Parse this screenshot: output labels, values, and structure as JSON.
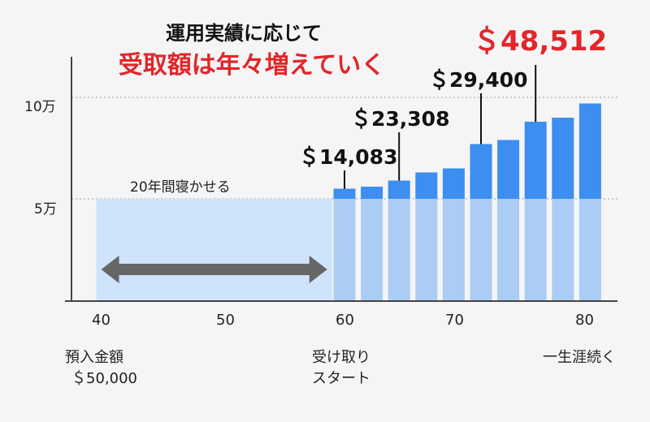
{
  "title": "運用実績に応じて",
  "subtitle": "受取額は年々増えていく",
  "chart_data": {
    "type": "bar",
    "x_ticks": [
      "40",
      "50",
      "60",
      "70",
      "80"
    ],
    "y_ticks": [
      "5万",
      "10万"
    ],
    "xlim": [
      38,
      82
    ],
    "ylim": [
      0,
      120000
    ],
    "waiting": {
      "from_age": 40,
      "to_age": 59,
      "value": 50000,
      "label": "20年間寝かせる"
    },
    "bars": [
      {
        "age": 60,
        "value": 55000
      },
      {
        "age": 62.2,
        "value": 56000
      },
      {
        "age": 64.4,
        "value": 59000
      },
      {
        "age": 66.6,
        "value": 63000
      },
      {
        "age": 68.8,
        "value": 65000
      },
      {
        "age": 71,
        "value": 77000
      },
      {
        "age": 73.2,
        "value": 79000
      },
      {
        "age": 75.4,
        "value": 88000
      },
      {
        "age": 77.6,
        "value": 90000
      },
      {
        "age": 79.8,
        "value": 97000
      }
    ],
    "annotations": [
      {
        "label": "＄14,083",
        "bar_index": 0,
        "style": "normal"
      },
      {
        "label": "＄23,308",
        "bar_index": 2,
        "style": "normal"
      },
      {
        "label": "＄29,400",
        "bar_index": 5,
        "style": "normal"
      },
      {
        "label": "＄48,512",
        "bar_index": 7,
        "style": "highlight"
      }
    ],
    "bottom_labels": {
      "start_line1": "預入金額",
      "start_line2": "＄50,000",
      "receive_line1": "受け取り",
      "receive_line2": "スタート",
      "lifetime": "一生涯続く"
    }
  }
}
